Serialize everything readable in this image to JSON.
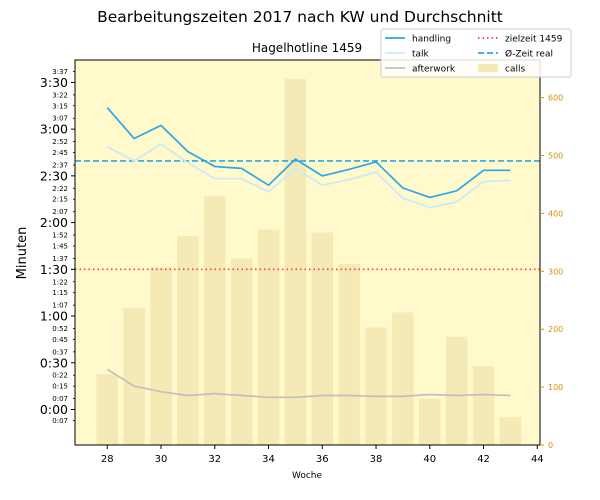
{
  "chart_data": {
    "type": "bar+line",
    "title": "Bearbeitungszeiten 2017 nach KW und Durchschnitt",
    "subtitle": "Hagelhotline 1459",
    "xlabel": "Woche",
    "ylabel": "Minuten",
    "x": [
      28,
      29,
      30,
      31,
      32,
      33,
      34,
      35,
      36,
      37,
      38,
      39,
      40,
      41,
      42,
      43
    ],
    "xlim": [
      26.8,
      44.1
    ],
    "xticks": [
      28,
      30,
      32,
      34,
      36,
      38,
      40,
      42,
      44
    ],
    "ylim": [
      -0.38,
      3.74
    ],
    "yticks_major": [
      {
        "v": 0.0,
        "t": "0:00"
      },
      {
        "v": 0.5,
        "t": "0:30"
      },
      {
        "v": 1.0,
        "t": "1:00"
      },
      {
        "v": 1.5,
        "t": "1:30"
      },
      {
        "v": 2.0,
        "t": "2:00"
      },
      {
        "v": 2.5,
        "t": "2:30"
      },
      {
        "v": 3.0,
        "t": "3:00"
      },
      {
        "v": 3.5,
        "t": "3:30"
      }
    ],
    "yticks_minor": [
      {
        "v": -0.1167,
        "t": "0:07"
      },
      {
        "v": 0.1167,
        "t": "0:07"
      },
      {
        "v": 0.25,
        "t": "0:15"
      },
      {
        "v": 0.3667,
        "t": "0:22"
      },
      {
        "v": 0.6167,
        "t": "0:37"
      },
      {
        "v": 0.75,
        "t": "0:45"
      },
      {
        "v": 0.8667,
        "t": "0:52"
      },
      {
        "v": 1.1167,
        "t": "1:07"
      },
      {
        "v": 1.25,
        "t": "1:15"
      },
      {
        "v": 1.3667,
        "t": "1:22"
      },
      {
        "v": 1.6167,
        "t": "1:37"
      },
      {
        "v": 1.75,
        "t": "1:45"
      },
      {
        "v": 1.8667,
        "t": "1:52"
      },
      {
        "v": 2.1167,
        "t": "2:07"
      },
      {
        "v": 2.25,
        "t": "2:15"
      },
      {
        "v": 2.3667,
        "t": "2:22"
      },
      {
        "v": 2.6167,
        "t": "2:37"
      },
      {
        "v": 2.75,
        "t": "2:45"
      },
      {
        "v": 2.8667,
        "t": "2:52"
      },
      {
        "v": 3.1167,
        "t": "3:07"
      },
      {
        "v": 3.25,
        "t": "3:15"
      },
      {
        "v": 3.3667,
        "t": "3:22"
      },
      {
        "v": 3.6167,
        "t": "3:37"
      }
    ],
    "y2lim": [
      0,
      665
    ],
    "y2ticks": [
      0,
      100,
      200,
      300,
      400,
      500,
      600
    ],
    "series": [
      {
        "name": "handling",
        "axis": "left",
        "kind": "line",
        "color": "#2aa8e8",
        "values": [
          3.23,
          2.9,
          3.04,
          2.76,
          2.6,
          2.58,
          2.4,
          2.68,
          2.5,
          2.57,
          2.65,
          2.37,
          2.27,
          2.34,
          2.56,
          2.56
        ]
      },
      {
        "name": "talk",
        "axis": "left",
        "kind": "line",
        "color": "#cbe9fb",
        "values": [
          2.81,
          2.66,
          2.84,
          2.64,
          2.47,
          2.47,
          2.33,
          2.58,
          2.4,
          2.46,
          2.54,
          2.26,
          2.16,
          2.22,
          2.44,
          2.45
        ]
      },
      {
        "name": "afterwork",
        "axis": "left",
        "kind": "line",
        "color": "#c0c0c0",
        "values": [
          0.43,
          0.25,
          0.19,
          0.15,
          0.17,
          0.15,
          0.13,
          0.13,
          0.15,
          0.15,
          0.14,
          0.14,
          0.16,
          0.15,
          0.16,
          0.15
        ]
      },
      {
        "name": "zielzeit 1459",
        "axis": "left",
        "kind": "hline",
        "color": "#ff3b3b",
        "value": 1.5
      },
      {
        "name": "Ø-Zeit real",
        "axis": "left",
        "kind": "hline",
        "color": "#2aa8e8",
        "value": 2.66
      },
      {
        "name": "calls",
        "axis": "right",
        "kind": "bar",
        "color": "#f5e9b5",
        "values": [
          122,
          237,
          307,
          361,
          430,
          322,
          372,
          632,
          367,
          313,
          203,
          229,
          80,
          187,
          136,
          48
        ]
      }
    ],
    "legend_position": "top-right",
    "grid": false,
    "colors": {
      "plot_bg": "#fff9cc",
      "right_axis": "#d4900a"
    }
  }
}
